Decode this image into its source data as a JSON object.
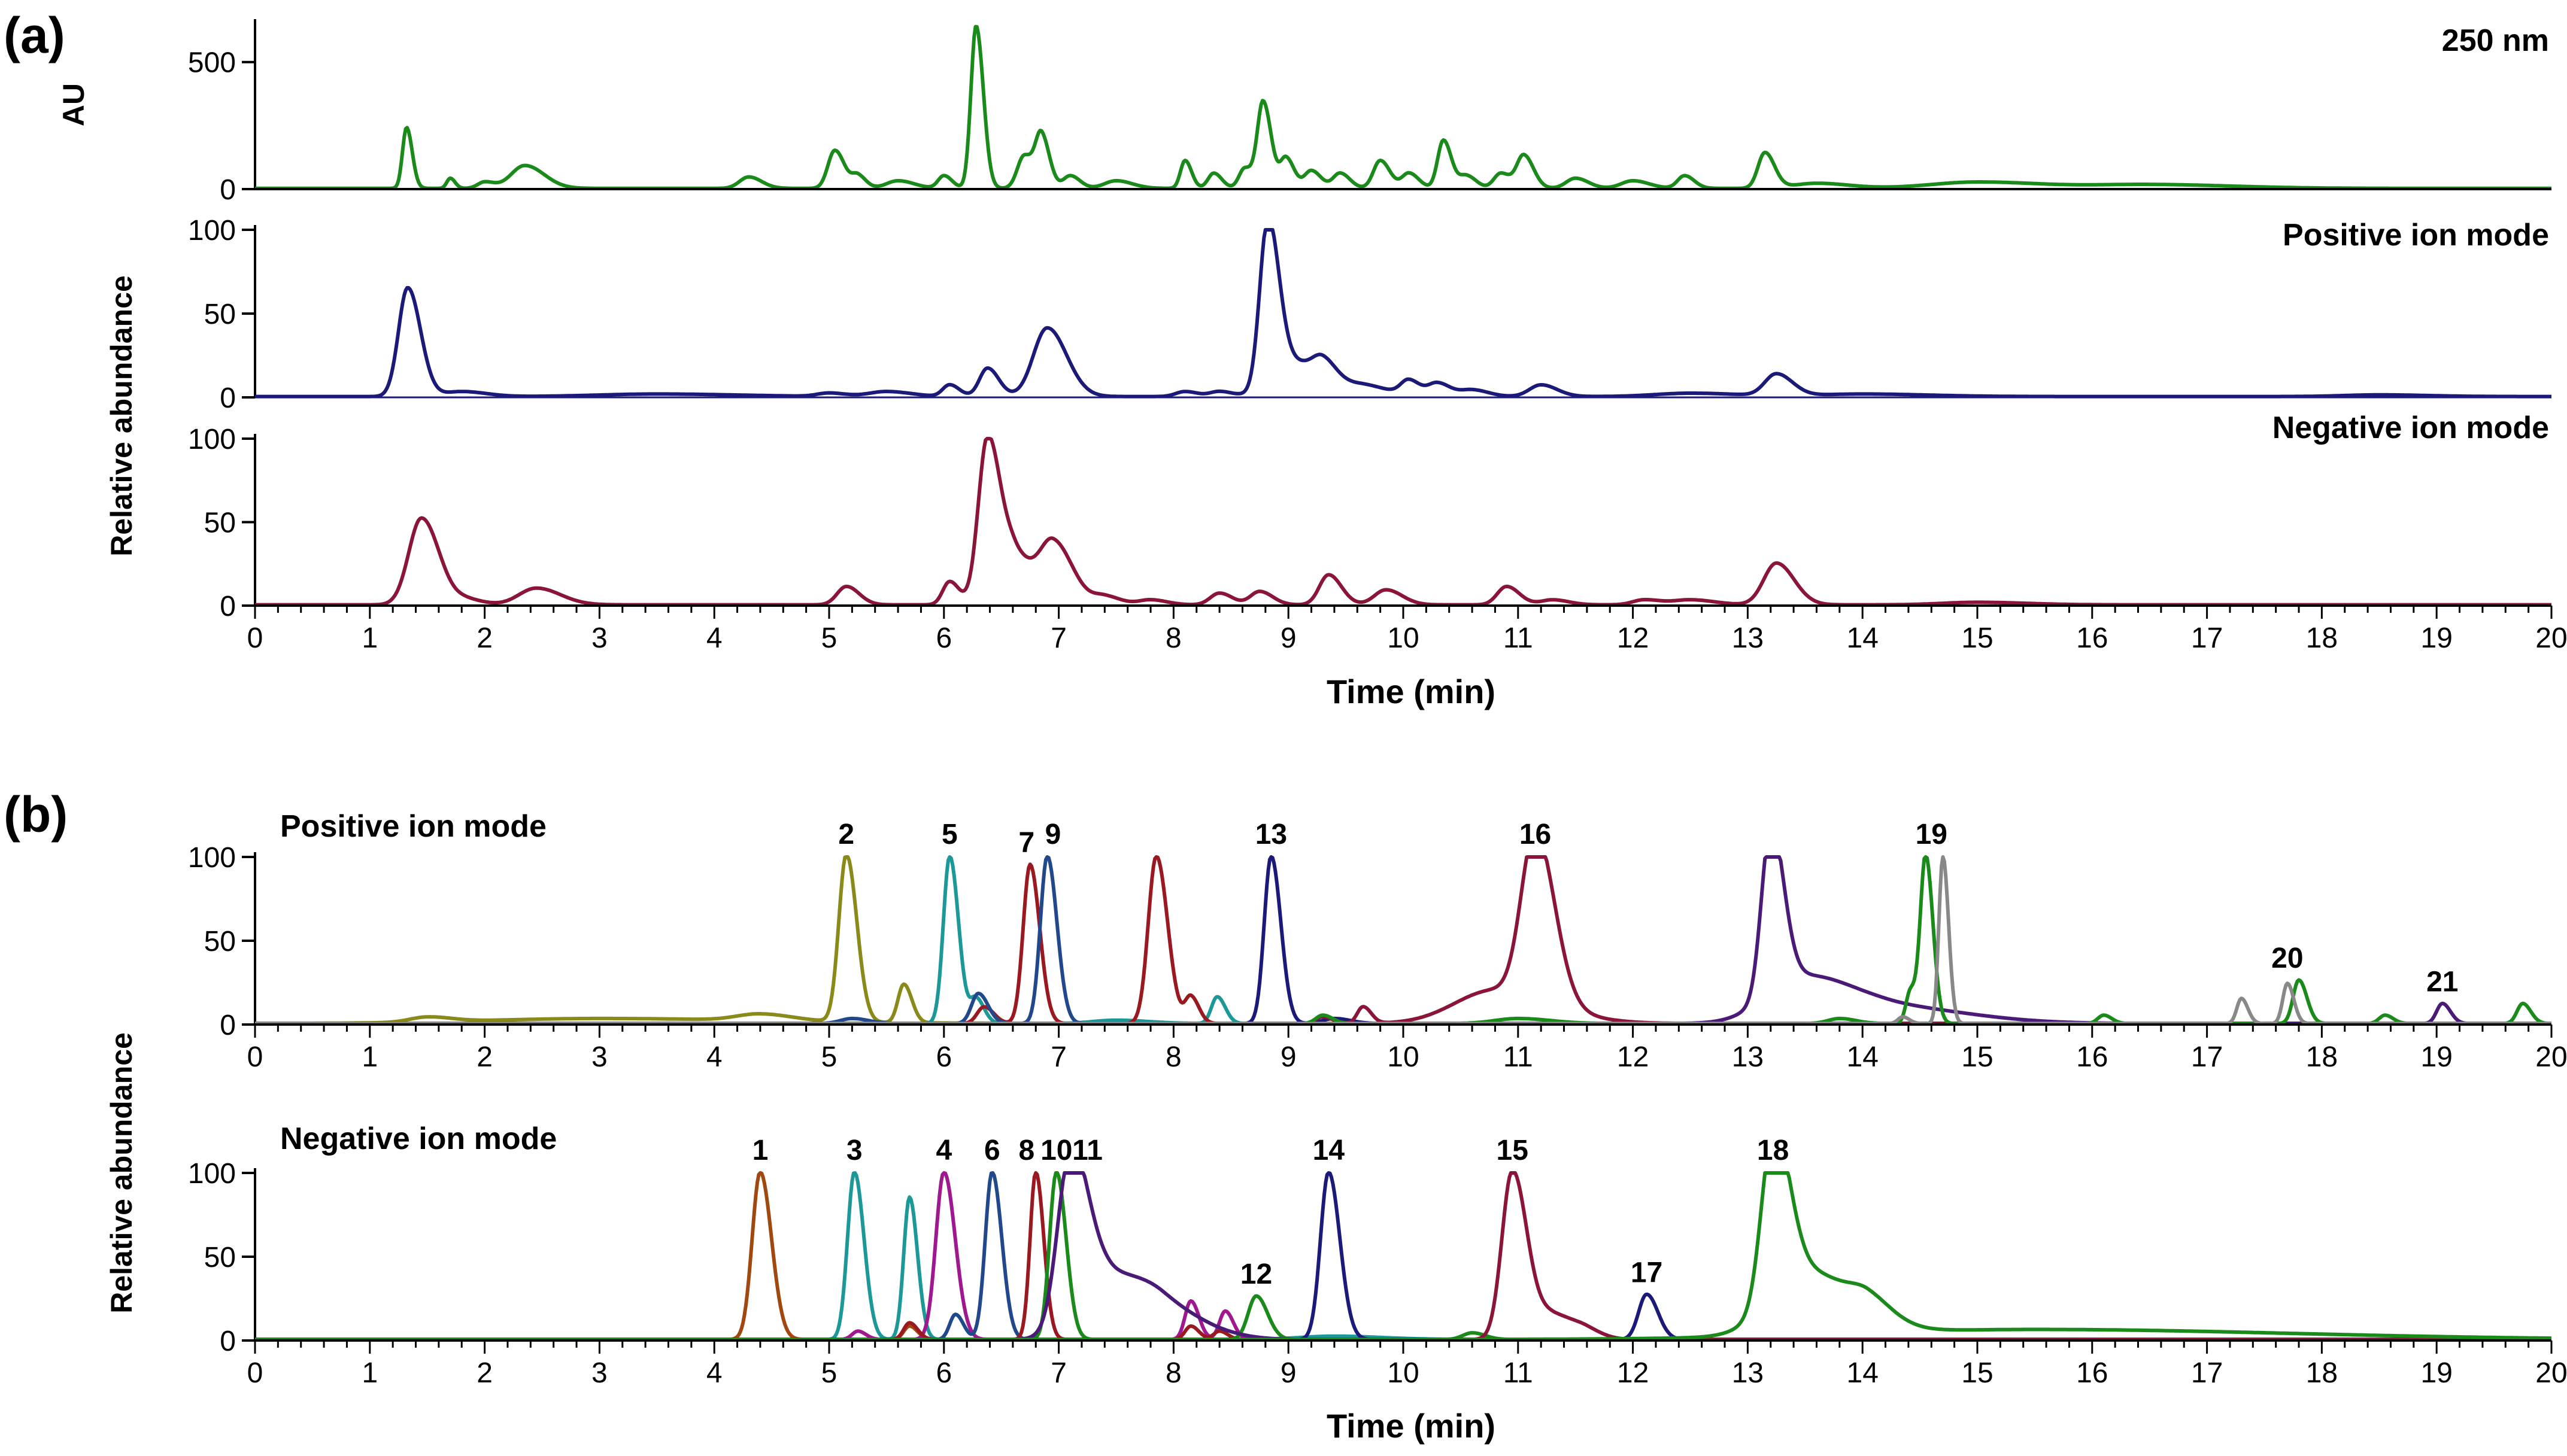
{
  "panel_a": {
    "label": "(a)",
    "xlabel": "Time (min)",
    "shared_ylabel": "Relative abundance",
    "x_ticks": [
      "0",
      "1",
      "2",
      "3",
      "4",
      "5",
      "6",
      "7",
      "8",
      "9",
      "10",
      "11",
      "12",
      "13",
      "14",
      "15",
      "16",
      "17",
      "18",
      "19",
      "20"
    ]
  },
  "panel_b": {
    "label": "(b)",
    "xlabel": "Time (min)",
    "x_ticks": [
      "0",
      "1",
      "2",
      "3",
      "4",
      "5",
      "6",
      "7",
      "8",
      "9",
      "10",
      "11",
      "12",
      "13",
      "14",
      "15",
      "16",
      "17",
      "18",
      "19",
      "20"
    ]
  },
  "chart_data": [
    {
      "type": "line",
      "panel": "a",
      "title": "250 nm",
      "ylabel": "AU",
      "xlim": [
        0,
        20
      ],
      "ylim": [
        0,
        650
      ],
      "y_ticks": [
        "0",
        "500"
      ],
      "color": "#1a8a1a",
      "baseline": 3,
      "peaks": [
        [
          1.32,
          240,
          0.035
        ],
        [
          1.7,
          40,
          0.03
        ],
        [
          2.0,
          25,
          0.06
        ],
        [
          2.35,
          90,
          0.12
        ],
        [
          4.3,
          45,
          0.08
        ],
        [
          5.05,
          150,
          0.06
        ],
        [
          5.25,
          50,
          0.05
        ],
        [
          5.6,
          30,
          0.1
        ],
        [
          6.0,
          50,
          0.05
        ],
        [
          6.28,
          640,
          0.045
        ],
        [
          6.7,
          130,
          0.06
        ],
        [
          6.85,
          200,
          0.05
        ],
        [
          7.1,
          50,
          0.06
        ],
        [
          7.5,
          30,
          0.1
        ],
        [
          8.1,
          110,
          0.04
        ],
        [
          8.35,
          60,
          0.05
        ],
        [
          8.62,
          80,
          0.05
        ],
        [
          8.78,
          340,
          0.05
        ],
        [
          8.98,
          120,
          0.05
        ],
        [
          9.2,
          70,
          0.06
        ],
        [
          9.45,
          60,
          0.06
        ],
        [
          9.8,
          110,
          0.06
        ],
        [
          10.05,
          60,
          0.06
        ],
        [
          10.35,
          190,
          0.05
        ],
        [
          10.55,
          50,
          0.06
        ],
        [
          10.85,
          60,
          0.06
        ],
        [
          11.05,
          130,
          0.06
        ],
        [
          11.5,
          40,
          0.08
        ],
        [
          12.0,
          30,
          0.1
        ],
        [
          12.45,
          50,
          0.06
        ],
        [
          13.15,
          140,
          0.06
        ],
        [
          13.6,
          20,
          0.2
        ],
        [
          15.0,
          25,
          0.4
        ],
        [
          16.5,
          15,
          0.5
        ]
      ]
    },
    {
      "type": "line",
      "panel": "a",
      "title": "Positive ion mode",
      "ylabel": "Relative abundance",
      "xlim": [
        0,
        20
      ],
      "ylim": [
        0,
        100
      ],
      "y_ticks": [
        "0",
        "50",
        "100"
      ],
      "color": "#1c1a78",
      "baseline": 0.5,
      "peaks": [
        [
          1.33,
          65,
          0.08
        ],
        [
          1.8,
          3,
          0.15
        ],
        [
          3.5,
          1.5,
          0.5
        ],
        [
          5.0,
          2,
          0.1
        ],
        [
          5.5,
          3,
          0.15
        ],
        [
          6.05,
          7,
          0.06
        ],
        [
          6.38,
          17,
          0.07
        ],
        [
          6.9,
          41,
          0.12
        ],
        [
          8.1,
          3,
          0.08
        ],
        [
          8.4,
          3,
          0.08
        ],
        [
          8.82,
          99,
          0.07
        ],
        [
          9.1,
          20,
          0.2
        ],
        [
          9.3,
          9,
          0.08
        ],
        [
          9.7,
          5,
          0.15
        ],
        [
          10.05,
          9,
          0.07
        ],
        [
          10.3,
          8,
          0.08
        ],
        [
          10.6,
          4,
          0.1
        ],
        [
          11.2,
          7,
          0.1
        ],
        [
          12.5,
          2,
          0.3
        ],
        [
          13.25,
          13,
          0.1
        ],
        [
          14.0,
          1.5,
          0.4
        ],
        [
          18.5,
          1,
          0.3
        ]
      ]
    },
    {
      "type": "line",
      "panel": "a",
      "title": "Negative ion mode",
      "ylabel": "",
      "xlim": [
        0,
        20
      ],
      "ylim": [
        0,
        100
      ],
      "y_ticks": [
        "0",
        "50",
        "100"
      ],
      "color": "#8a1538",
      "baseline": 0.5,
      "peaks": [
        [
          1.45,
          52,
          0.11
        ],
        [
          1.85,
          3,
          0.1
        ],
        [
          2.45,
          10,
          0.15
        ],
        [
          5.15,
          11,
          0.08
        ],
        [
          6.05,
          14,
          0.06
        ],
        [
          6.38,
          100,
          0.08
        ],
        [
          6.62,
          28,
          0.1
        ],
        [
          6.95,
          38,
          0.12
        ],
        [
          7.4,
          5,
          0.1
        ],
        [
          7.8,
          3,
          0.1
        ],
        [
          8.4,
          7,
          0.08
        ],
        [
          8.75,
          8,
          0.08
        ],
        [
          9.35,
          18,
          0.08
        ],
        [
          9.85,
          9,
          0.1
        ],
        [
          10.9,
          11,
          0.08
        ],
        [
          11.3,
          3,
          0.1
        ],
        [
          12.1,
          3,
          0.1
        ],
        [
          12.5,
          3,
          0.15
        ],
        [
          13.25,
          25,
          0.11
        ],
        [
          15.0,
          1.5,
          0.3
        ]
      ]
    },
    {
      "type": "line",
      "panel": "b",
      "title": "Positive ion mode",
      "ylabel": "Relative abundance",
      "xlim": [
        0,
        20
      ],
      "ylim": [
        0,
        100
      ],
      "y_ticks": [
        "0",
        "50",
        "100"
      ],
      "series": [
        {
          "color": "#8a8a1a",
          "peaks": [
            [
              5.15,
              100,
              0.065
            ],
            [
              5.65,
              23,
              0.05
            ],
            [
              3.0,
              3,
              1.0
            ],
            [
              4.4,
              4,
              0.2
            ],
            [
              1.5,
              3,
              0.15
            ]
          ]
        },
        {
          "color": "#1c9898",
          "peaks": [
            [
              6.05,
              100,
              0.055
            ],
            [
              6.28,
              15,
              0.05
            ],
            [
              8.38,
              16,
              0.05
            ],
            [
              7.5,
              2,
              0.2
            ]
          ]
        },
        {
          "color": "#9a1820",
          "peaks": [
            [
              6.75,
              95,
              0.06
            ],
            [
              6.35,
              10,
              0.06
            ],
            [
              7.85,
              100,
              0.07
            ],
            [
              8.15,
              16,
              0.05
            ]
          ]
        },
        {
          "color": "#22488c",
          "peaks": [
            [
              6.9,
              100,
              0.06
            ],
            [
              6.3,
              18,
              0.06
            ],
            [
              5.2,
              3,
              0.1
            ]
          ]
        },
        {
          "color": "#1c1a78",
          "peaks": [
            [
              8.85,
              100,
              0.06
            ],
            [
              9.4,
              3,
              0.1
            ]
          ]
        },
        {
          "color": "#8a1538",
          "peaks": [
            [
              11.15,
              100,
              0.12
            ],
            [
              10.8,
              20,
              0.35
            ],
            [
              9.65,
              10,
              0.05
            ],
            [
              9.3,
              4,
              0.06
            ]
          ]
        },
        {
          "color": "#4a1a78",
          "peaks": [
            [
              13.2,
              100,
              0.08
            ],
            [
              13.45,
              25,
              0.3
            ],
            [
              14.2,
              10,
              0.5
            ],
            [
              19.05,
              12,
              0.05
            ]
          ]
        },
        {
          "color": "#1a8a1a",
          "peaks": [
            [
              14.55,
              100,
              0.045
            ],
            [
              14.42,
              20,
              0.04
            ],
            [
              11.0,
              3,
              0.2
            ],
            [
              13.8,
              3,
              0.1
            ],
            [
              16.1,
              5,
              0.05
            ],
            [
              17.8,
              26,
              0.05
            ],
            [
              18.55,
              5,
              0.05
            ],
            [
              19.75,
              12,
              0.05
            ],
            [
              9.3,
              5,
              0.06
            ]
          ]
        },
        {
          "color": "#888888",
          "peaks": [
            [
              14.7,
              100,
              0.035
            ],
            [
              17.3,
              15,
              0.04
            ],
            [
              17.7,
              24,
              0.04
            ],
            [
              14.35,
              4,
              0.04
            ]
          ]
        }
      ],
      "annotations": [
        {
          "text": "2",
          "x": 5.15,
          "y": 100
        },
        {
          "text": "5",
          "x": 6.05,
          "y": 100
        },
        {
          "text": "7",
          "x": 6.72,
          "y": 95
        },
        {
          "text": "9",
          "x": 6.95,
          "y": 100
        },
        {
          "text": "13",
          "x": 8.85,
          "y": 100
        },
        {
          "text": "16",
          "x": 11.15,
          "y": 100
        },
        {
          "text": "19",
          "x": 14.6,
          "y": 100
        },
        {
          "text": "20",
          "x": 17.7,
          "y": 26
        },
        {
          "text": "21",
          "x": 19.05,
          "y": 12
        }
      ]
    },
    {
      "type": "line",
      "panel": "b",
      "title": "Negative ion mode",
      "ylabel": "",
      "xlim": [
        0,
        20
      ],
      "ylim": [
        0,
        100
      ],
      "y_ticks": [
        "0",
        "50",
        "100"
      ],
      "series": [
        {
          "color": "#a04810",
          "peaks": [
            [
              4.4,
              100,
              0.07
            ],
            [
              5.7,
              8,
              0.05
            ]
          ]
        },
        {
          "color": "#1c9898",
          "peaks": [
            [
              5.22,
              100,
              0.06
            ],
            [
              5.7,
              85,
              0.05
            ],
            [
              9.4,
              2,
              0.3
            ]
          ]
        },
        {
          "color": "#a01890",
          "peaks": [
            [
              6.0,
              100,
              0.07
            ],
            [
              5.25,
              5,
              0.05
            ],
            [
              8.15,
              23,
              0.05
            ],
            [
              8.45,
              17,
              0.05
            ]
          ]
        },
        {
          "color": "#22488c",
          "peaks": [
            [
              6.42,
              100,
              0.06
            ],
            [
              6.1,
              15,
              0.05
            ]
          ]
        },
        {
          "color": "#9a1820",
          "peaks": [
            [
              6.8,
              100,
              0.05
            ],
            [
              8.15,
              8,
              0.05
            ],
            [
              8.4,
              5,
              0.05
            ],
            [
              5.7,
              10,
              0.05
            ]
          ]
        },
        {
          "color": "#1a8a1a",
          "peaks": [
            [
              6.98,
              100,
              0.06
            ],
            [
              8.72,
              26,
              0.07
            ],
            [
              10.6,
              4,
              0.08
            ]
          ]
        },
        {
          "color": "#4a1a78",
          "peaks": [
            [
              7.1,
              100,
              0.11
            ],
            [
              7.45,
              38,
              0.25
            ],
            [
              7.9,
              12,
              0.2
            ],
            [
              8.3,
              4,
              0.2
            ]
          ]
        },
        {
          "color": "#1c1a78",
          "peaks": [
            [
              9.35,
              100,
              0.07
            ],
            [
              12.12,
              27,
              0.07
            ]
          ]
        },
        {
          "color": "#8a1538",
          "peaks": [
            [
              10.95,
              100,
              0.09
            ],
            [
              11.3,
              15,
              0.15
            ],
            [
              11.6,
              3,
              0.1
            ]
          ]
        },
        {
          "color": "#1a8a1a",
          "peaks": [
            [
              13.22,
              100,
              0.1
            ],
            [
              13.5,
              38,
              0.3
            ],
            [
              14.05,
              10,
              0.15
            ],
            [
              15.5,
              6,
              1.6
            ]
          ]
        }
      ],
      "annotations": [
        {
          "text": "1",
          "x": 4.4,
          "y": 100
        },
        {
          "text": "3",
          "x": 5.22,
          "y": 100
        },
        {
          "text": "4",
          "x": 6.0,
          "y": 100
        },
        {
          "text": "6",
          "x": 6.42,
          "y": 100
        },
        {
          "text": "8",
          "x": 6.72,
          "y": 100
        },
        {
          "text": "10",
          "x": 6.98,
          "y": 100
        },
        {
          "text": "11",
          "x": 7.25,
          "y": 100
        },
        {
          "text": "12",
          "x": 8.72,
          "y": 26
        },
        {
          "text": "14",
          "x": 9.35,
          "y": 100
        },
        {
          "text": "15",
          "x": 10.95,
          "y": 100
        },
        {
          "text": "17",
          "x": 12.12,
          "y": 27
        },
        {
          "text": "18",
          "x": 13.22,
          "y": 100
        }
      ]
    }
  ]
}
